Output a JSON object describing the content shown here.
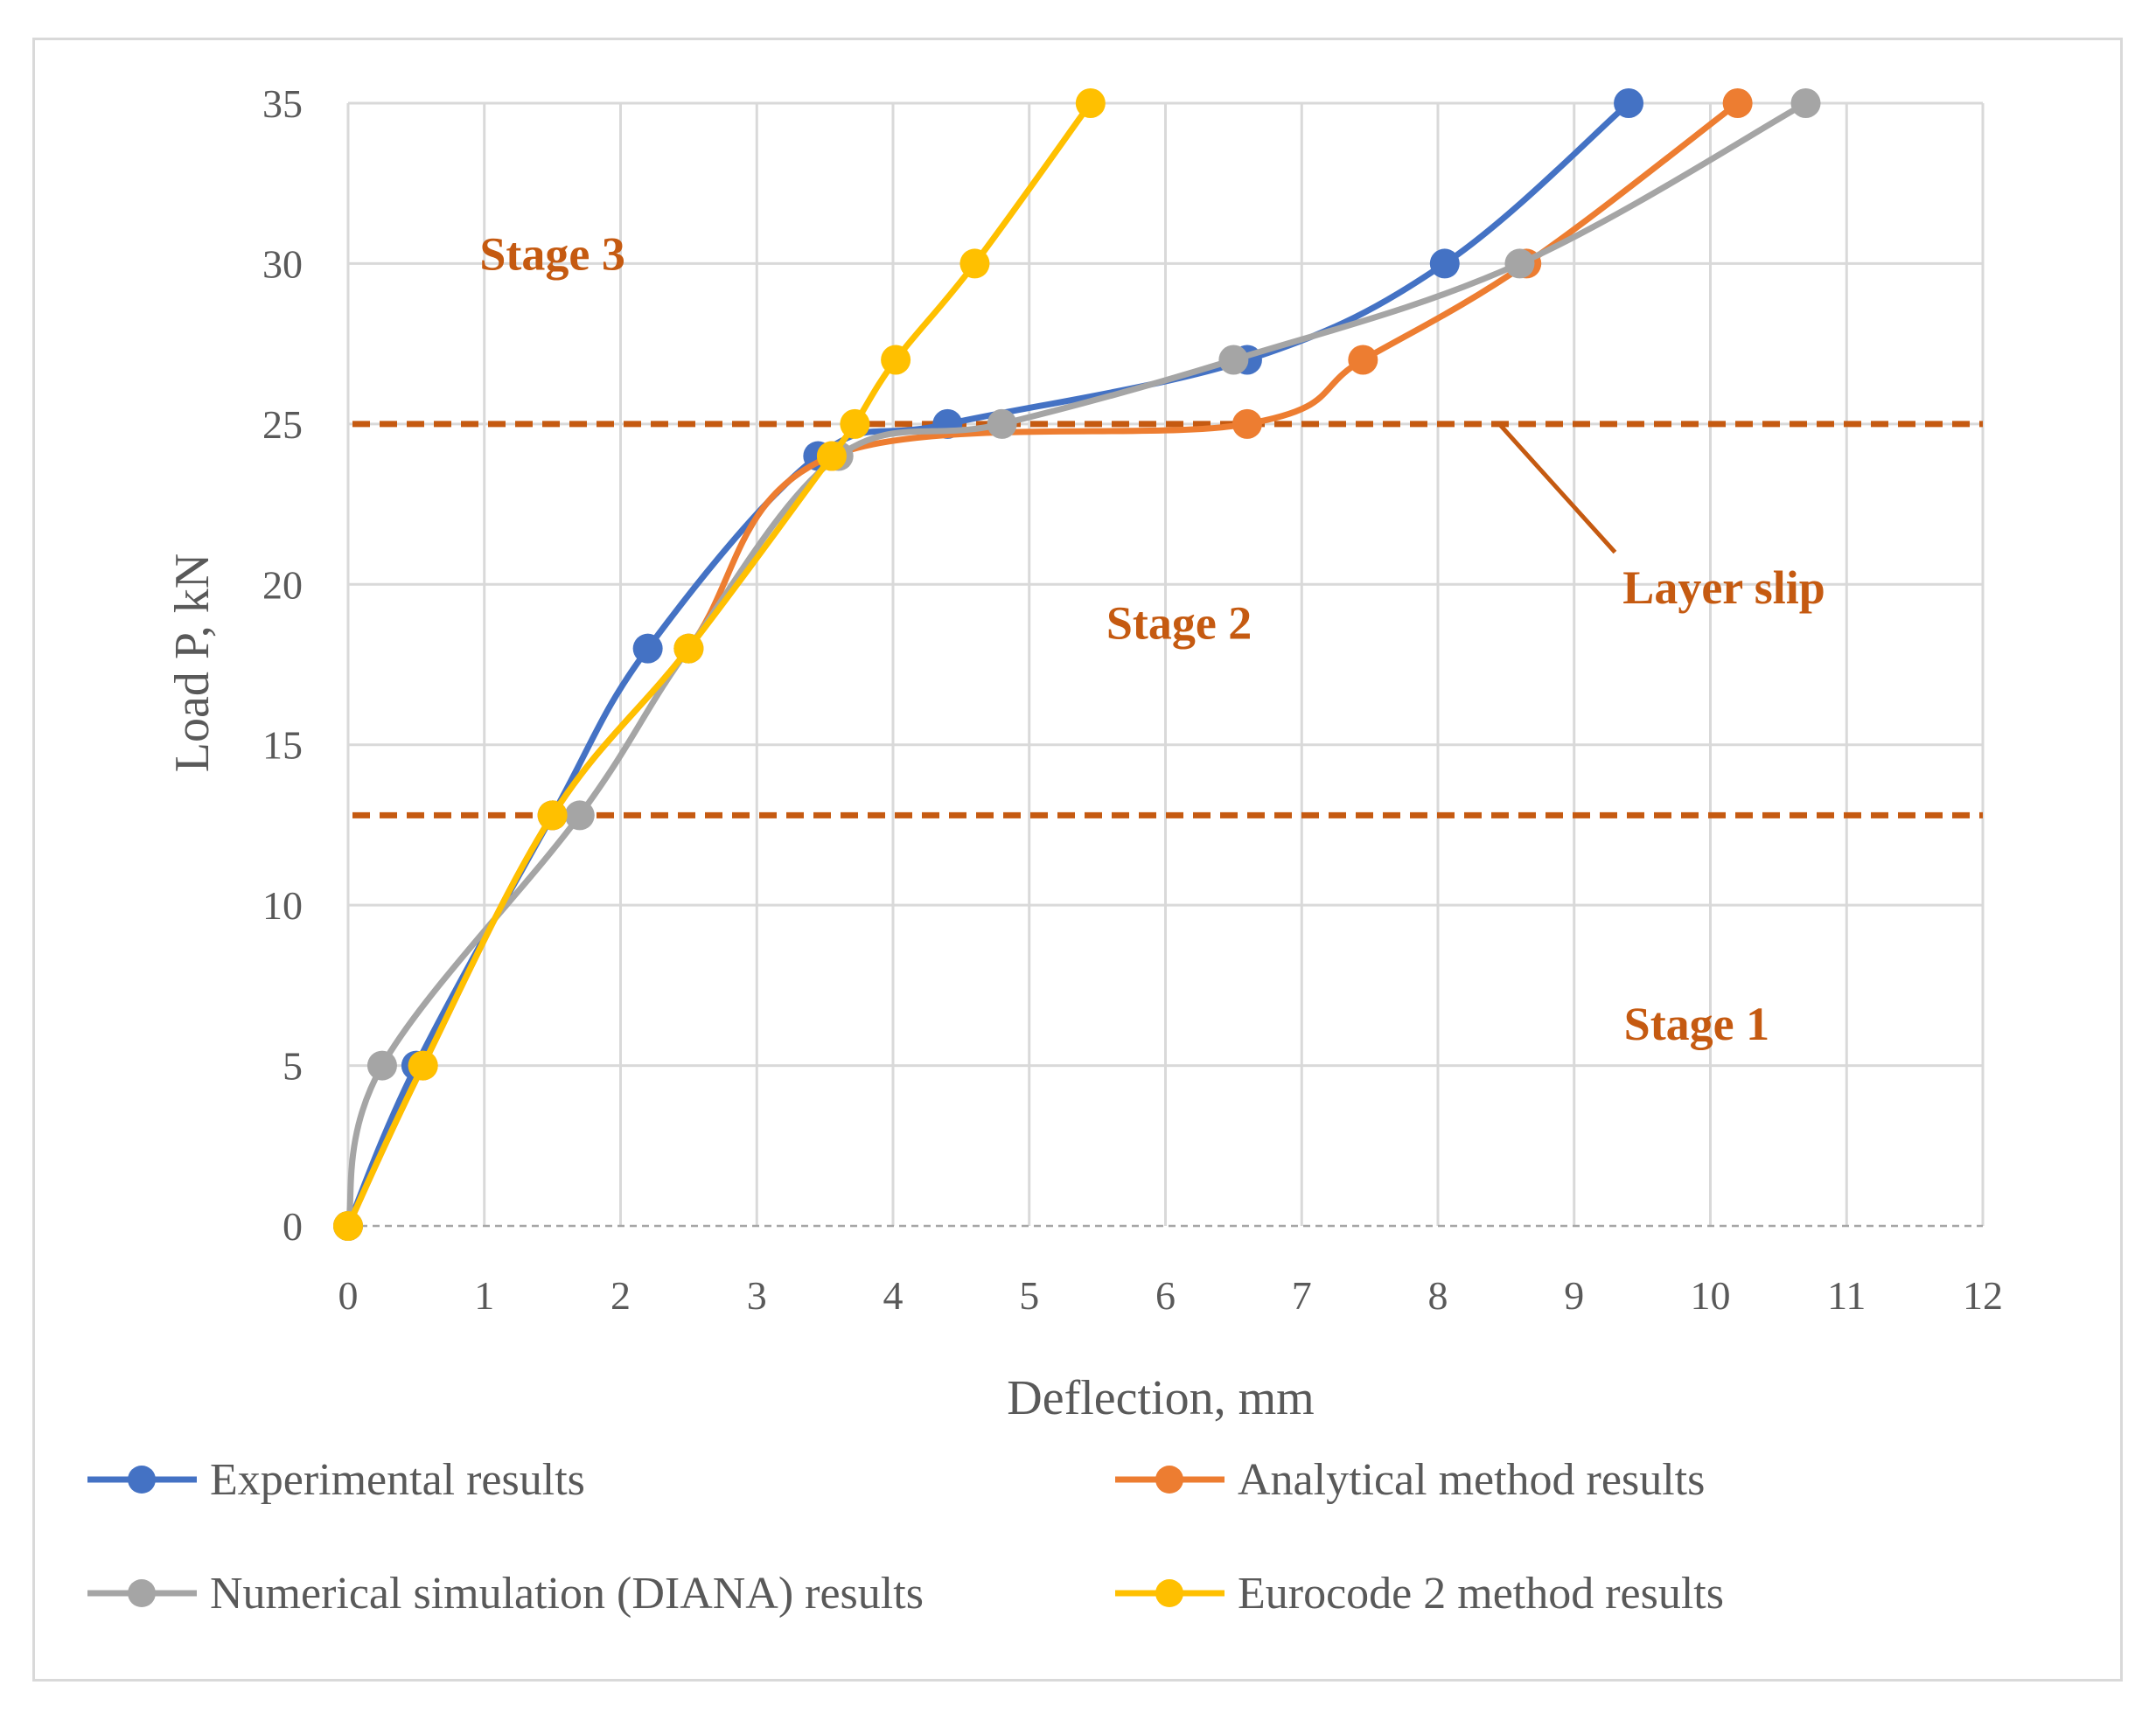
{
  "chart_data": {
    "type": "line",
    "title": "",
    "xlabel": "Deflection, mm",
    "ylabel": "Load P, kN",
    "xlim": [
      0,
      12
    ],
    "ylim": [
      0,
      35
    ],
    "xticks": [
      0,
      1,
      2,
      3,
      4,
      5,
      6,
      7,
      8,
      9,
      10,
      11,
      12
    ],
    "yticks": [
      0,
      5,
      10,
      15,
      20,
      25,
      30,
      35
    ],
    "grid": true,
    "legend_position": "bottom",
    "series": [
      {
        "name": "Experimental results",
        "color": "#4472C4",
        "points": [
          [
            0,
            0
          ],
          [
            0.5,
            5
          ],
          [
            1.5,
            12.8
          ],
          [
            2.2,
            18
          ],
          [
            3.45,
            24
          ],
          [
            4.4,
            25
          ],
          [
            6.6,
            27
          ],
          [
            8.05,
            30
          ],
          [
            9.4,
            35
          ]
        ]
      },
      {
        "name": "Analytical method results",
        "color": "#ED7D31",
        "points": [
          [
            0,
            0
          ],
          [
            0.55,
            5
          ],
          [
            1.5,
            12.8
          ],
          [
            2.5,
            18
          ],
          [
            3.55,
            24
          ],
          [
            6.6,
            25
          ],
          [
            7.45,
            27
          ],
          [
            8.65,
            30
          ],
          [
            10.2,
            35
          ]
        ]
      },
      {
        "name": "Numerical simulation (DIANA) results",
        "color": "#A5A5A5",
        "points": [
          [
            0,
            0
          ],
          [
            0.25,
            5
          ],
          [
            1.7,
            12.8
          ],
          [
            2.5,
            18
          ],
          [
            3.6,
            24
          ],
          [
            4.8,
            25
          ],
          [
            6.5,
            27
          ],
          [
            8.6,
            30
          ],
          [
            10.7,
            35
          ]
        ]
      },
      {
        "name": "Eurocode 2 method results",
        "color": "#FFC000",
        "points": [
          [
            0,
            0
          ],
          [
            0.55,
            5
          ],
          [
            1.5,
            12.8
          ],
          [
            2.5,
            18
          ],
          [
            3.55,
            24
          ],
          [
            3.72,
            25
          ],
          [
            4.02,
            27
          ],
          [
            4.6,
            30
          ],
          [
            5.45,
            35
          ]
        ]
      }
    ],
    "reference_lines": [
      {
        "axis": "y",
        "value": 25,
        "style": "dashed",
        "color": "#C55A11"
      },
      {
        "axis": "y",
        "value": 12.8,
        "style": "dashed",
        "color": "#C55A11"
      }
    ],
    "annotations": [
      {
        "text": "Stage 3",
        "x": 1.5,
        "y": 30.3,
        "color": "#C55A11"
      },
      {
        "text": "Stage 2",
        "x": 6.1,
        "y": 18.8,
        "color": "#C55A11"
      },
      {
        "text": "Stage 1",
        "x": 9.9,
        "y": 6.3,
        "color": "#C55A11"
      },
      {
        "text": "Layer slip",
        "x": 10.1,
        "y": 19.9,
        "color": "#C55A11",
        "arrow_to": [
          8.45,
          25
        ]
      }
    ]
  }
}
